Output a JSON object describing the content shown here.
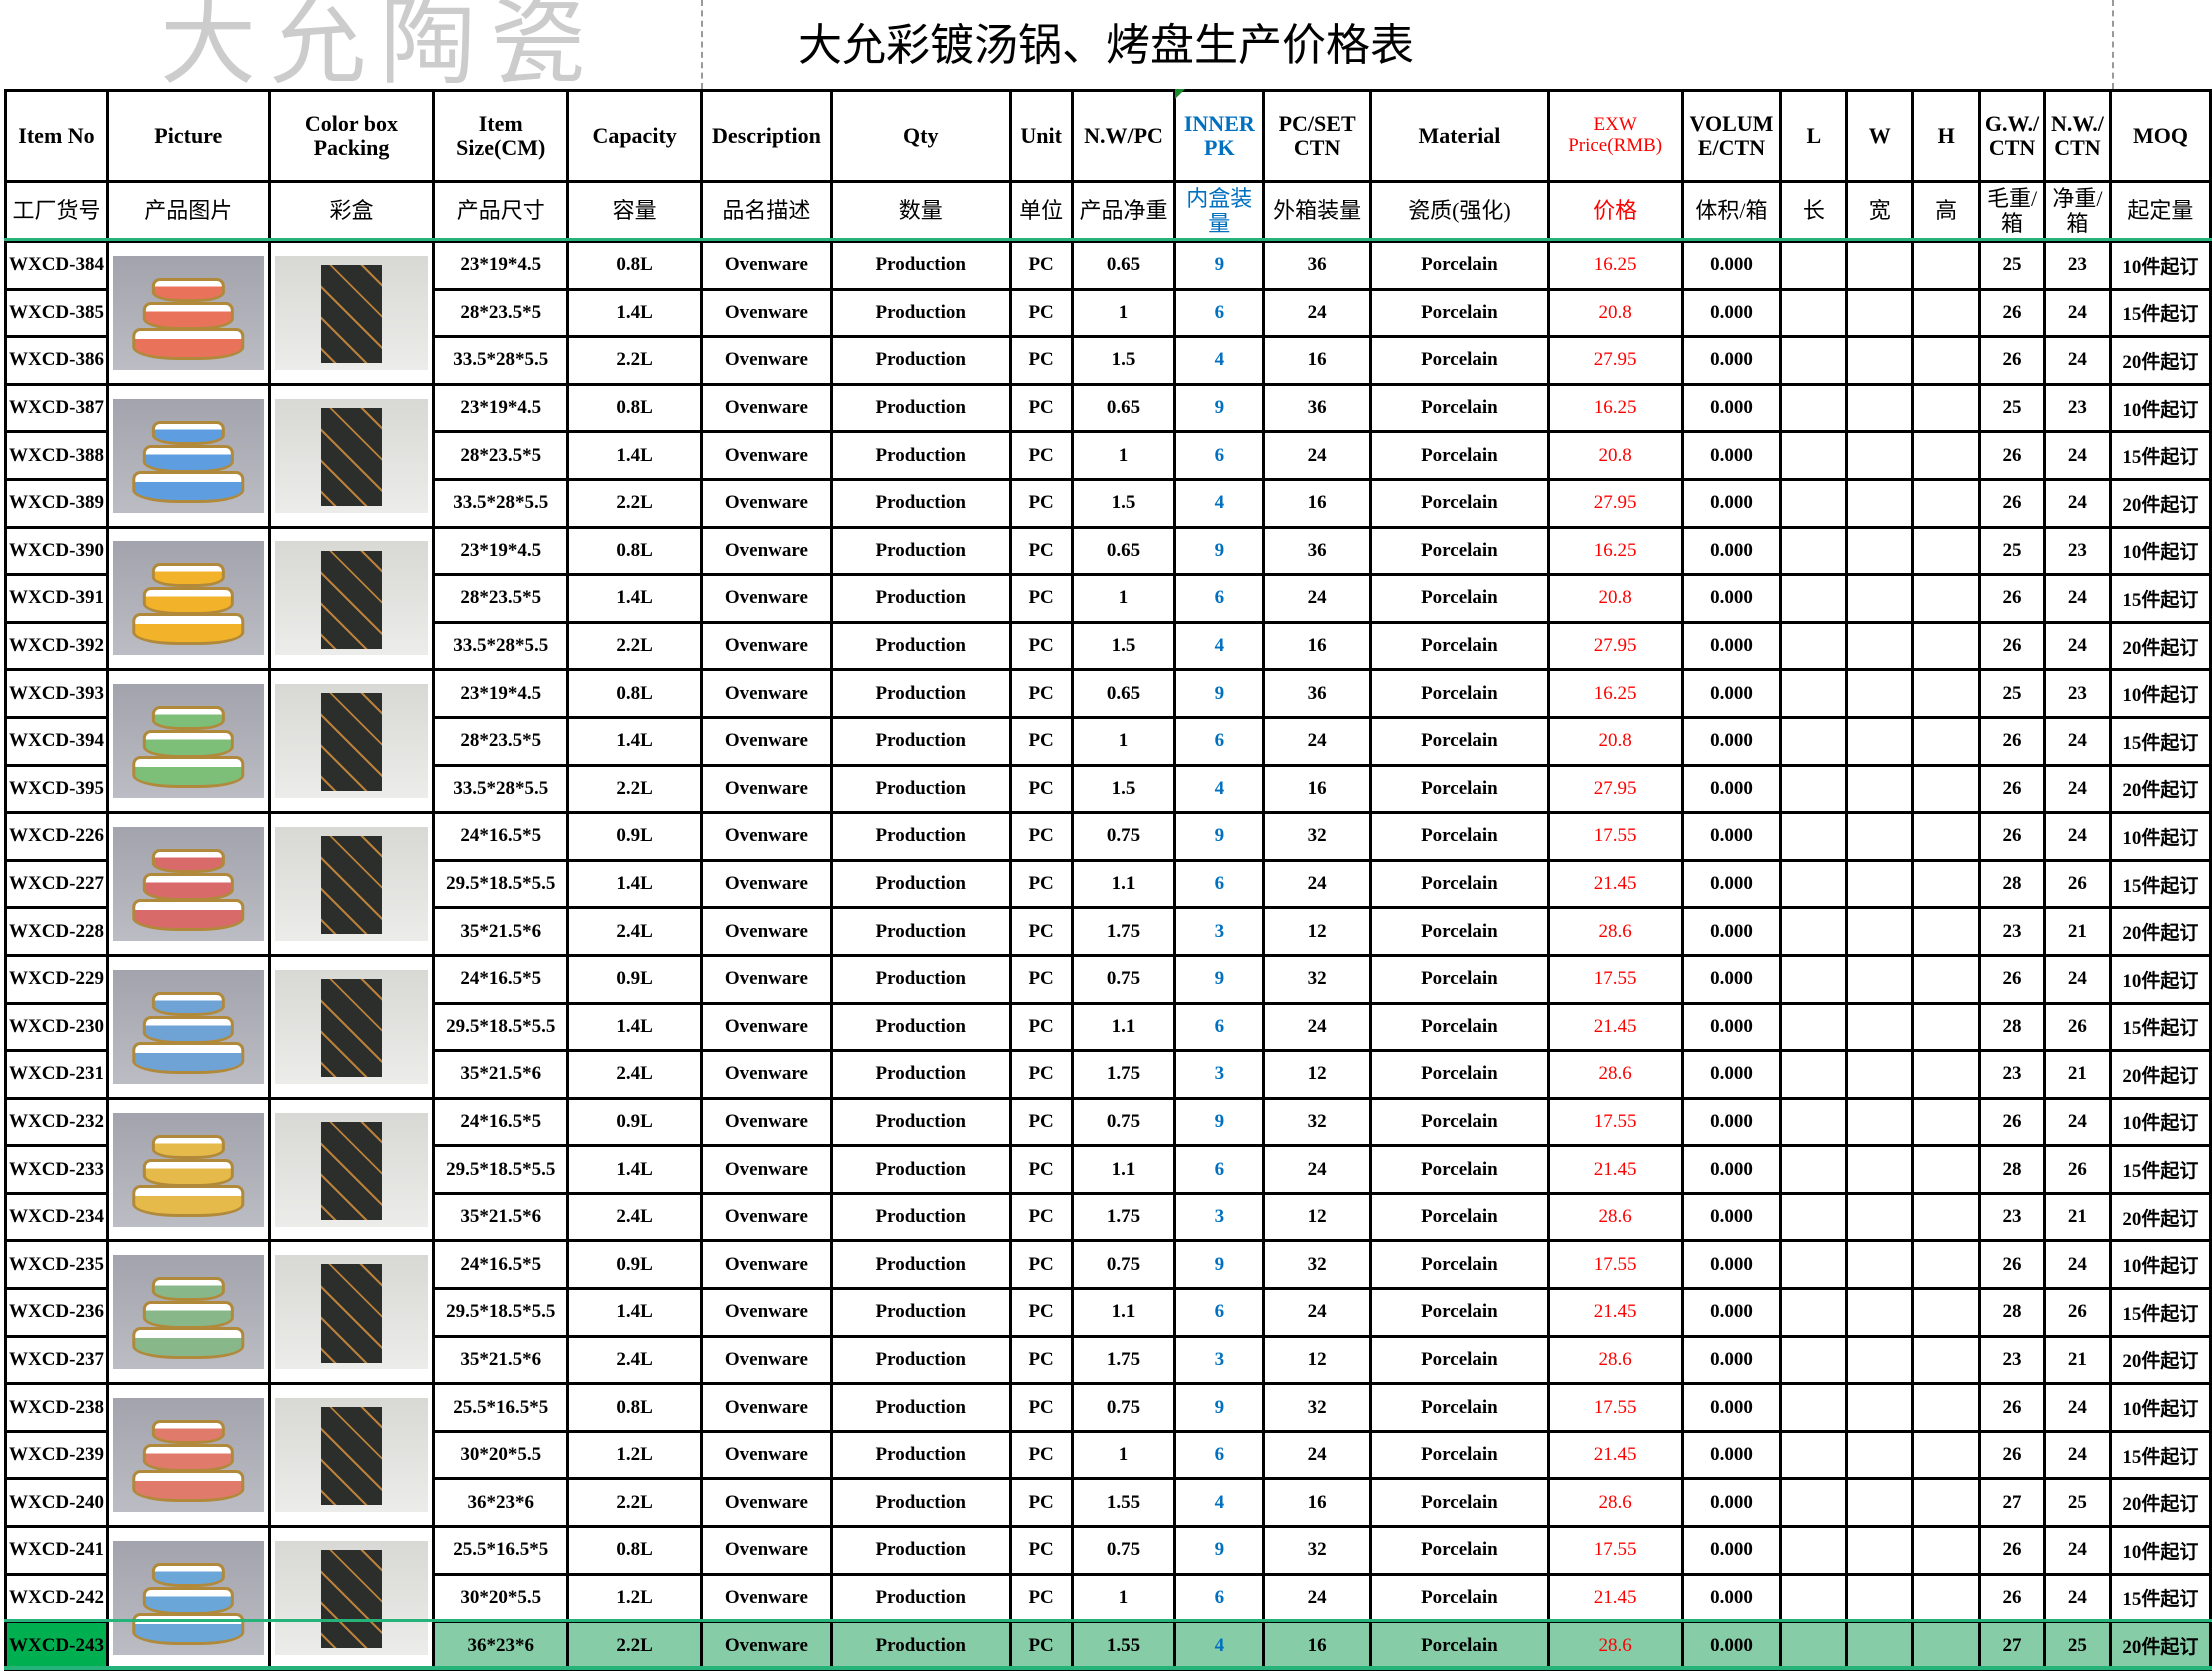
{
  "title": "大允彩镀汤锅、烤盘生产价格表",
  "watermark": "大允陶瓷",
  "colors": {
    "price": "#ff0000",
    "inner": "#0070c0",
    "selection": "#25b37a",
    "selected_row": "#86cda7",
    "selected_cell": "#00b050"
  },
  "headers_en": [
    "Item No",
    "Picture",
    "Color box Packing",
    "Item Size(CM)",
    "Capacity",
    "Description",
    "Qty",
    "Unit",
    "N.W/PC",
    "INNER PK",
    "PC/SET CTN",
    "Material",
    "EXW Price(RMB)",
    "VOLUME/CTN",
    "L",
    "W",
    "H",
    "G.W./CTN",
    "N.W./CTN",
    "MOQ"
  ],
  "headers_cn": [
    "工厂货号",
    "产品图片",
    "彩盒",
    "产品尺寸",
    "容量",
    "品名描述",
    "数量",
    "单位",
    "产品净重",
    "内盒装量",
    "外箱装量",
    "瓷质(强化)",
    "价格",
    "体积/箱",
    "长",
    "宽",
    "高",
    "毛重/箱",
    "净重/箱",
    "起定量"
  ],
  "groups": [
    {
      "picture": "round-casserole-set-red",
      "bowl_color": "#e8735a"
    },
    {
      "picture": "round-casserole-set-blue",
      "bowl_color": "#5d9de0"
    },
    {
      "picture": "round-casserole-set-yellow",
      "bowl_color": "#f2b22a"
    },
    {
      "picture": "round-casserole-set-green",
      "bowl_color": "#7dbf78"
    },
    {
      "picture": "rect-baking-dish-set-red",
      "bowl_color": "#d96a6a"
    },
    {
      "picture": "rect-baking-dish-set-blue",
      "bowl_color": "#6fa3d6"
    },
    {
      "picture": "rect-baking-dish-set-yellow",
      "bowl_color": "#e5b94a"
    },
    {
      "picture": "rect-baking-dish-set-green",
      "bowl_color": "#88b88a"
    },
    {
      "picture": "oval-baking-dish-set-red",
      "bowl_color": "#e07a6a"
    },
    {
      "picture": "oval-baking-dish-set-blue",
      "bowl_color": "#6aa6d8"
    }
  ],
  "rows": [
    [
      "WXCD-384",
      "23*19*4.5",
      "0.8L",
      "Ovenware",
      "Production",
      "PC",
      "0.65",
      "9",
      "36",
      "Porcelain",
      "16.25",
      "0.000",
      "",
      "",
      "",
      "25",
      "23",
      "10件起订"
    ],
    [
      "WXCD-385",
      "28*23.5*5",
      "1.4L",
      "Ovenware",
      "Production",
      "PC",
      "1",
      "6",
      "24",
      "Porcelain",
      "20.8",
      "0.000",
      "",
      "",
      "",
      "26",
      "24",
      "15件起订"
    ],
    [
      "WXCD-386",
      "33.5*28*5.5",
      "2.2L",
      "Ovenware",
      "Production",
      "PC",
      "1.5",
      "4",
      "16",
      "Porcelain",
      "27.95",
      "0.000",
      "",
      "",
      "",
      "26",
      "24",
      "20件起订"
    ],
    [
      "WXCD-387",
      "23*19*4.5",
      "0.8L",
      "Ovenware",
      "Production",
      "PC",
      "0.65",
      "9",
      "36",
      "Porcelain",
      "16.25",
      "0.000",
      "",
      "",
      "",
      "25",
      "23",
      "10件起订"
    ],
    [
      "WXCD-388",
      "28*23.5*5",
      "1.4L",
      "Ovenware",
      "Production",
      "PC",
      "1",
      "6",
      "24",
      "Porcelain",
      "20.8",
      "0.000",
      "",
      "",
      "",
      "26",
      "24",
      "15件起订"
    ],
    [
      "WXCD-389",
      "33.5*28*5.5",
      "2.2L",
      "Ovenware",
      "Production",
      "PC",
      "1.5",
      "4",
      "16",
      "Porcelain",
      "27.95",
      "0.000",
      "",
      "",
      "",
      "26",
      "24",
      "20件起订"
    ],
    [
      "WXCD-390",
      "23*19*4.5",
      "0.8L",
      "Ovenware",
      "Production",
      "PC",
      "0.65",
      "9",
      "36",
      "Porcelain",
      "16.25",
      "0.000",
      "",
      "",
      "",
      "25",
      "23",
      "10件起订"
    ],
    [
      "WXCD-391",
      "28*23.5*5",
      "1.4L",
      "Ovenware",
      "Production",
      "PC",
      "1",
      "6",
      "24",
      "Porcelain",
      "20.8",
      "0.000",
      "",
      "",
      "",
      "26",
      "24",
      "15件起订"
    ],
    [
      "WXCD-392",
      "33.5*28*5.5",
      "2.2L",
      "Ovenware",
      "Production",
      "PC",
      "1.5",
      "4",
      "16",
      "Porcelain",
      "27.95",
      "0.000",
      "",
      "",
      "",
      "26",
      "24",
      "20件起订"
    ],
    [
      "WXCD-393",
      "23*19*4.5",
      "0.8L",
      "Ovenware",
      "Production",
      "PC",
      "0.65",
      "9",
      "36",
      "Porcelain",
      "16.25",
      "0.000",
      "",
      "",
      "",
      "25",
      "23",
      "10件起订"
    ],
    [
      "WXCD-394",
      "28*23.5*5",
      "1.4L",
      "Ovenware",
      "Production",
      "PC",
      "1",
      "6",
      "24",
      "Porcelain",
      "20.8",
      "0.000",
      "",
      "",
      "",
      "26",
      "24",
      "15件起订"
    ],
    [
      "WXCD-395",
      "33.5*28*5.5",
      "2.2L",
      "Ovenware",
      "Production",
      "PC",
      "1.5",
      "4",
      "16",
      "Porcelain",
      "27.95",
      "0.000",
      "",
      "",
      "",
      "26",
      "24",
      "20件起订"
    ],
    [
      "WXCD-226",
      "24*16.5*5",
      "0.9L",
      "Ovenware",
      "Production",
      "PC",
      "0.75",
      "9",
      "32",
      "Porcelain",
      "17.55",
      "0.000",
      "",
      "",
      "",
      "26",
      "24",
      "10件起订"
    ],
    [
      "WXCD-227",
      "29.5*18.5*5.5",
      "1.4L",
      "Ovenware",
      "Production",
      "PC",
      "1.1",
      "6",
      "24",
      "Porcelain",
      "21.45",
      "0.000",
      "",
      "",
      "",
      "28",
      "26",
      "15件起订"
    ],
    [
      "WXCD-228",
      "35*21.5*6",
      "2.4L",
      "Ovenware",
      "Production",
      "PC",
      "1.75",
      "3",
      "12",
      "Porcelain",
      "28.6",
      "0.000",
      "",
      "",
      "",
      "23",
      "21",
      "20件起订"
    ],
    [
      "WXCD-229",
      "24*16.5*5",
      "0.9L",
      "Ovenware",
      "Production",
      "PC",
      "0.75",
      "9",
      "32",
      "Porcelain",
      "17.55",
      "0.000",
      "",
      "",
      "",
      "26",
      "24",
      "10件起订"
    ],
    [
      "WXCD-230",
      "29.5*18.5*5.5",
      "1.4L",
      "Ovenware",
      "Production",
      "PC",
      "1.1",
      "6",
      "24",
      "Porcelain",
      "21.45",
      "0.000",
      "",
      "",
      "",
      "28",
      "26",
      "15件起订"
    ],
    [
      "WXCD-231",
      "35*21.5*6",
      "2.4L",
      "Ovenware",
      "Production",
      "PC",
      "1.75",
      "3",
      "12",
      "Porcelain",
      "28.6",
      "0.000",
      "",
      "",
      "",
      "23",
      "21",
      "20件起订"
    ],
    [
      "WXCD-232",
      "24*16.5*5",
      "0.9L",
      "Ovenware",
      "Production",
      "PC",
      "0.75",
      "9",
      "32",
      "Porcelain",
      "17.55",
      "0.000",
      "",
      "",
      "",
      "26",
      "24",
      "10件起订"
    ],
    [
      "WXCD-233",
      "29.5*18.5*5.5",
      "1.4L",
      "Ovenware",
      "Production",
      "PC",
      "1.1",
      "6",
      "24",
      "Porcelain",
      "21.45",
      "0.000",
      "",
      "",
      "",
      "28",
      "26",
      "15件起订"
    ],
    [
      "WXCD-234",
      "35*21.5*6",
      "2.4L",
      "Ovenware",
      "Production",
      "PC",
      "1.75",
      "3",
      "12",
      "Porcelain",
      "28.6",
      "0.000",
      "",
      "",
      "",
      "23",
      "21",
      "20件起订"
    ],
    [
      "WXCD-235",
      "24*16.5*5",
      "0.9L",
      "Ovenware",
      "Production",
      "PC",
      "0.75",
      "9",
      "32",
      "Porcelain",
      "17.55",
      "0.000",
      "",
      "",
      "",
      "26",
      "24",
      "10件起订"
    ],
    [
      "WXCD-236",
      "29.5*18.5*5.5",
      "1.4L",
      "Ovenware",
      "Production",
      "PC",
      "1.1",
      "6",
      "24",
      "Porcelain",
      "21.45",
      "0.000",
      "",
      "",
      "",
      "28",
      "26",
      "15件起订"
    ],
    [
      "WXCD-237",
      "35*21.5*6",
      "2.4L",
      "Ovenware",
      "Production",
      "PC",
      "1.75",
      "3",
      "12",
      "Porcelain",
      "28.6",
      "0.000",
      "",
      "",
      "",
      "23",
      "21",
      "20件起订"
    ],
    [
      "WXCD-238",
      "25.5*16.5*5",
      "0.8L",
      "Ovenware",
      "Production",
      "PC",
      "0.75",
      "9",
      "32",
      "Porcelain",
      "17.55",
      "0.000",
      "",
      "",
      "",
      "26",
      "24",
      "10件起订"
    ],
    [
      "WXCD-239",
      "30*20*5.5",
      "1.2L",
      "Ovenware",
      "Production",
      "PC",
      "1",
      "6",
      "24",
      "Porcelain",
      "21.45",
      "0.000",
      "",
      "",
      "",
      "26",
      "24",
      "15件起订"
    ],
    [
      "WXCD-240",
      "36*23*6",
      "2.2L",
      "Ovenware",
      "Production",
      "PC",
      "1.55",
      "4",
      "16",
      "Porcelain",
      "28.6",
      "0.000",
      "",
      "",
      "",
      "27",
      "25",
      "20件起订"
    ],
    [
      "WXCD-241",
      "25.5*16.5*5",
      "0.8L",
      "Ovenware",
      "Production",
      "PC",
      "0.75",
      "9",
      "32",
      "Porcelain",
      "17.55",
      "0.000",
      "",
      "",
      "",
      "26",
      "24",
      "10件起订"
    ],
    [
      "WXCD-242",
      "30*20*5.5",
      "1.2L",
      "Ovenware",
      "Production",
      "PC",
      "1",
      "6",
      "24",
      "Porcelain",
      "21.45",
      "0.000",
      "",
      "",
      "",
      "26",
      "24",
      "15件起订"
    ],
    [
      "WXCD-243",
      "36*23*6",
      "2.2L",
      "Ovenware",
      "Production",
      "PC",
      "1.55",
      "4",
      "16",
      "Porcelain",
      "28.6",
      "0.000",
      "",
      "",
      "",
      "27",
      "25",
      "20件起订"
    ]
  ],
  "selected_row": "WXCD-243"
}
